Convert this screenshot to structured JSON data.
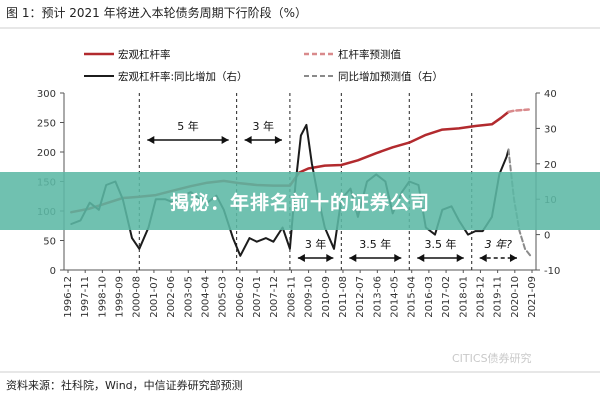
{
  "overlay": {
    "headline": "揭秘：年排名前十的证券公司"
  },
  "source_note": "资料来源：社科院，Wind，中信证券研究部预测",
  "watermark": "CITICS债券研究",
  "colors": {
    "leverage": "#b22a2e",
    "leverage_forecast": "#d98a8c",
    "yoy": "#1c1c1c",
    "yoy_forecast": "#8a8a8a",
    "annotation": "#111111"
  },
  "chart_data": {
    "type": "line",
    "title": "图 1：预计 2021 年将进入本轮债务周期下行阶段（%）",
    "legend": {
      "placement": "top",
      "items": [
        {
          "label": "宏观杠杆率",
          "series": "leverage",
          "style": "solid"
        },
        {
          "label": "杠杆率预测值",
          "series": "leverage_forecast",
          "style": "dashed"
        },
        {
          "label": "宏观杠杆率:同比增加（右）",
          "series": "yoy",
          "style": "solid"
        },
        {
          "label": "同比增加预测值（右）",
          "series": "yoy_forecast",
          "style": "dashed"
        }
      ]
    },
    "x_ticks": [
      "1996-12",
      "1997-11",
      "1998-10",
      "1999-09",
      "2000-08",
      "2001-07",
      "2002-06",
      "2003-05",
      "2004-04",
      "2005-03",
      "2006-02",
      "2007-01",
      "2007-12",
      "2008-11",
      "2009-10",
      "2010-09",
      "2011-08",
      "2012-07",
      "2013-06",
      "2014-05",
      "2015-04",
      "2016-03",
      "2017-02",
      "2018-01",
      "2018-12",
      "2019-11",
      "2020-10",
      "2021-09"
    ],
    "y_left": {
      "range": [
        0,
        300
      ],
      "ticks": [
        0,
        50,
        100,
        150,
        200,
        250,
        300
      ]
    },
    "y_right": {
      "range": [
        -10,
        40
      ],
      "ticks": [
        -10,
        0,
        10,
        20,
        30,
        40
      ]
    },
    "series": [
      {
        "key": "leverage",
        "axis": "left",
        "x": [
          1996.9,
          1997.9,
          1998.8,
          1999.7,
          2000.6,
          2001.5,
          2002.5,
          2003.4,
          2004.3,
          2005.2,
          2006.1,
          2007.0,
          2007.9,
          2008.8,
          2009.3,
          2009.8,
          2010.7,
          2011.6,
          2012.5,
          2013.5,
          2014.4,
          2015.3,
          2016.2,
          2017.1,
          2018.0,
          2018.9,
          2019.8,
          2020.3,
          2020.7
        ],
        "y": [
          98,
          104,
          113,
          122,
          124,
          127,
          135,
          142,
          148,
          151,
          147,
          144,
          143,
          143,
          165,
          172,
          177,
          178,
          186,
          198,
          208,
          216,
          229,
          238,
          240,
          244,
          247,
          258,
          268
        ]
      },
      {
        "key": "leverage_forecast",
        "axis": "left",
        "x": [
          2020.7,
          2021.0,
          2021.4,
          2021.8
        ],
        "y": [
          268,
          270,
          271,
          272
        ]
      },
      {
        "key": "yoy",
        "axis": "right",
        "x": [
          1996.9,
          1997.4,
          1997.9,
          1998.4,
          1998.8,
          1999.3,
          1999.7,
          2000.2,
          2000.6,
          2001.1,
          2001.5,
          2002.0,
          2002.5,
          2003.0,
          2003.4,
          2003.9,
          2004.3,
          2004.8,
          2005.2,
          2005.7,
          2006.1,
          2006.6,
          2007.0,
          2007.5,
          2007.9,
          2008.4,
          2008.8,
          2009.1,
          2009.4,
          2009.7,
          2010.0,
          2010.4,
          2010.7,
          2011.2,
          2011.6,
          2012.1,
          2012.5,
          2013.0,
          2013.5,
          2014.0,
          2014.4,
          2014.9,
          2015.3,
          2015.8,
          2016.2,
          2016.7,
          2017.1,
          2017.6,
          2018.0,
          2018.5,
          2018.9,
          2019.3,
          2019.8,
          2020.2,
          2020.6,
          2020.7
        ],
        "y": [
          3,
          4,
          9,
          7,
          14,
          15,
          10,
          -1,
          -4,
          2,
          10,
          10,
          9,
          11,
          12,
          10,
          9,
          11,
          7,
          -1,
          -6,
          -1,
          -2,
          -1,
          -2,
          2,
          -4,
          14,
          28,
          31,
          20,
          9,
          2,
          -4,
          10,
          13,
          5,
          15,
          17,
          15,
          6,
          12,
          15,
          14,
          2,
          0,
          7,
          8,
          4,
          0,
          1,
          1,
          5,
          17,
          22,
          24
        ]
      },
      {
        "key": "yoy_forecast",
        "axis": "right",
        "x": [
          2020.7,
          2021.0,
          2021.3,
          2021.6,
          2021.9
        ],
        "y": [
          24,
          10,
          1,
          -4,
          -6
        ]
      }
    ],
    "vlines": [
      2000.6,
      2005.9,
      2008.8,
      2011.6,
      2015.3,
      2018.7
    ],
    "annotations": [
      {
        "label": "5 年",
        "row": "upper",
        "x_range": [
          2000.6,
          2005.9
        ]
      },
      {
        "label": "3 年",
        "row": "upper",
        "x_range": [
          2005.9,
          2008.8
        ]
      },
      {
        "label": "3 年",
        "row": "lower",
        "x_range": [
          2008.8,
          2011.6
        ]
      },
      {
        "label": "3.5 年",
        "row": "lower",
        "x_range": [
          2011.6,
          2015.3
        ]
      },
      {
        "label": "3.5 年",
        "row": "lower",
        "x_range": [
          2015.3,
          2018.7
        ]
      },
      {
        "label": "3 年?",
        "row": "lower",
        "x_range": [
          2018.7,
          2021.6
        ],
        "dashed": true
      }
    ]
  }
}
